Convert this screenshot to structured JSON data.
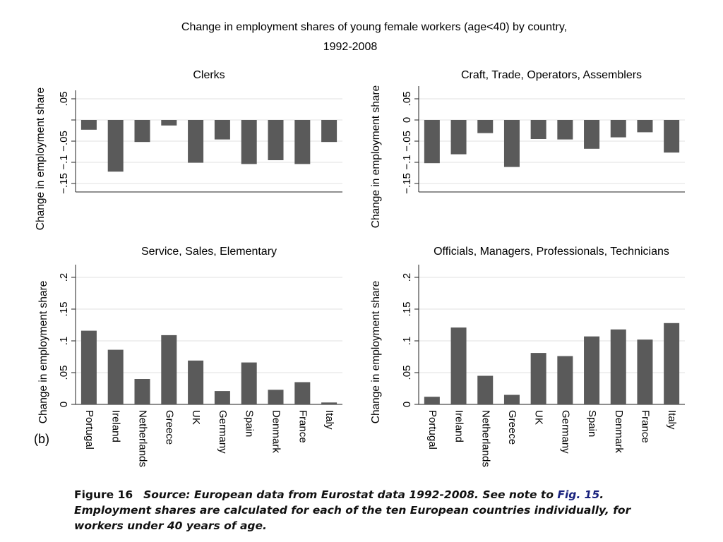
{
  "figure": {
    "title_line1": "Change in employment shares of young female workers (age<40) by country,",
    "title_line2": "1992-2008",
    "panel_tag": "(b)"
  },
  "chart_data": [
    {
      "type": "bar",
      "title": "Clerks",
      "ylabel": "Change in employment share",
      "categories": [
        "Portugal",
        "Ireland",
        "Netherlands",
        "Greece",
        "UK",
        "Germany",
        "Spain",
        "Denmark",
        "France",
        "Italy"
      ],
      "values": [
        -0.023,
        -0.122,
        -0.052,
        -0.013,
        -0.101,
        -0.046,
        -0.104,
        -0.095,
        -0.104,
        -0.052
      ],
      "ylim": [
        -0.17,
        0.07
      ],
      "yticks": [
        0.05,
        0,
        -0.05,
        -0.1,
        -0.15
      ],
      "yticklabels": [
        ".05",
        "",
        "-.05",
        "-.1",
        "-.15"
      ],
      "show_xticklabels": false
    },
    {
      "type": "bar",
      "title": "Craft, Trade, Operators, Assemblers",
      "ylabel": "Change in employment share",
      "categories": [
        "Portugal",
        "Ireland",
        "Netherlands",
        "Greece",
        "UK",
        "Germany",
        "Spain",
        "Denmark",
        "France",
        "Italy"
      ],
      "values": [
        -0.102,
        -0.081,
        -0.031,
        -0.111,
        -0.045,
        -0.046,
        -0.068,
        -0.041,
        -0.029,
        -0.077
      ],
      "ylim": [
        -0.17,
        0.08
      ],
      "yticks": [
        0.05,
        0,
        -0.05,
        -0.1,
        -0.15
      ],
      "yticklabels": [
        ".05",
        "0",
        "-.05",
        "-.1",
        "-.15"
      ],
      "show_xticklabels": false
    },
    {
      "type": "bar",
      "title": "Service, Sales, Elementary",
      "ylabel": "Change in employment share",
      "categories": [
        "Portugal",
        "Ireland",
        "Netherlands",
        "Greece",
        "UK",
        "Germany",
        "Spain",
        "Denmark",
        "France",
        "Italy"
      ],
      "values": [
        0.116,
        0.086,
        0.04,
        0.109,
        0.069,
        0.021,
        0.066,
        0.023,
        0.035,
        0.003
      ],
      "ylim": [
        0,
        0.22
      ],
      "yticks": [
        0,
        0.05,
        0.1,
        0.15,
        0.2
      ],
      "yticklabels": [
        "0",
        ".05",
        ".1",
        ".15",
        ".2"
      ],
      "show_xticklabels": true
    },
    {
      "type": "bar",
      "title": "Officials, Managers, Professionals, Technicians",
      "ylabel": "Change in employment share",
      "categories": [
        "Portugal",
        "Ireland",
        "Netherlands",
        "Greece",
        "UK",
        "Germany",
        "Spain",
        "Denmark",
        "France",
        "Italy"
      ],
      "values": [
        0.012,
        0.121,
        0.045,
        0.015,
        0.081,
        0.076,
        0.107,
        0.118,
        0.102,
        0.128
      ],
      "ylim": [
        0,
        0.22
      ],
      "yticks": [
        0,
        0.05,
        0.1,
        0.15,
        0.2
      ],
      "yticklabels": [
        "0",
        ".05",
        ".1",
        ".15",
        ".2"
      ],
      "show_xticklabels": true
    }
  ],
  "caption": {
    "label": "Figure 16",
    "text_before": "Source: European data from Eurostat data 1992-2008. See note to ",
    "link": "Fig. 15",
    "text_after": ". Employment shares are calculated for each of the ten European countries individually, for workers under 40 years of age."
  },
  "colors": {
    "bar": "#5a5a5a",
    "grid": "#e6e6e6",
    "axis": "#222222"
  }
}
